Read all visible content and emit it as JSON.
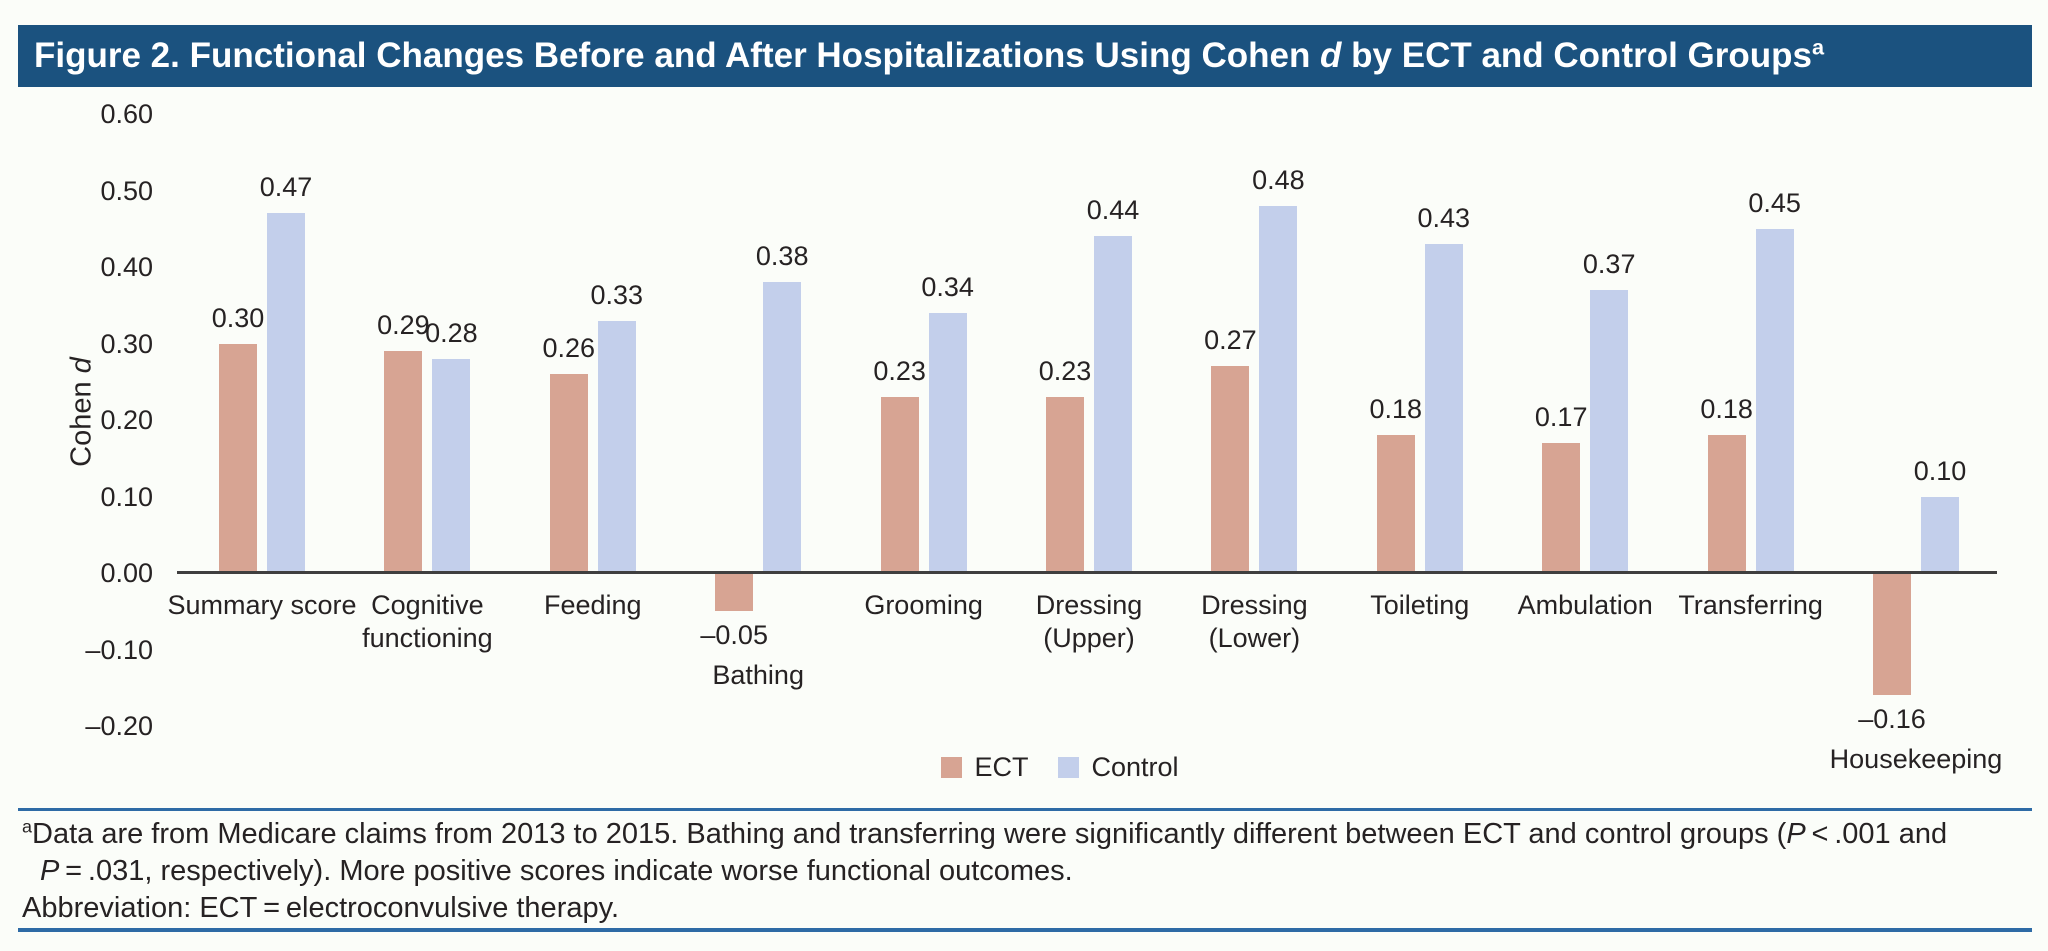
{
  "figure_title": {
    "part1": "Figure 2. Functional Changes Before and After Hospitalizations Using Cohen ",
    "italic_d": "d",
    "part2": " by ECT and Control Groups",
    "superscript": "a"
  },
  "y_axis": {
    "label_prefix": "Cohen ",
    "label_italic": "d",
    "ticks": [
      0.6,
      0.5,
      0.4,
      0.3,
      0.2,
      0.1,
      0.0,
      -0.1,
      -0.2
    ]
  },
  "legend": {
    "ect": "ECT",
    "control": "Control"
  },
  "colors": {
    "ect": "#d7a493",
    "control": "#c3cfeb",
    "title_bar": "#1b527f",
    "rule_blue": "#2e6ba6",
    "axis_line": "#3f3f3f"
  },
  "chart_data": {
    "type": "bar",
    "title": "Figure 2. Functional Changes Before and After Hospitalizations Using Cohen d by ECT and Control Groups",
    "ylabel": "Cohen d",
    "ylim": [
      -0.2,
      0.6
    ],
    "grid": false,
    "legend_position": "bottom",
    "categories": [
      "Summary score",
      "Cognitive\nfunctioning",
      "Feeding",
      "Bathing",
      "Grooming",
      "Dressing\n(Upper)",
      "Dressing\n(Lower)",
      "Toileting",
      "Ambulation",
      "Transferring",
      "Housekeeping"
    ],
    "series": [
      {
        "name": "ECT",
        "color": "#d7a493",
        "values": [
          0.3,
          0.29,
          0.26,
          -0.05,
          0.23,
          0.23,
          0.27,
          0.18,
          0.17,
          0.18,
          -0.16
        ]
      },
      {
        "name": "Control",
        "color": "#c3cfeb",
        "values": [
          0.47,
          0.28,
          0.33,
          0.38,
          0.34,
          0.44,
          0.48,
          0.43,
          0.37,
          0.45,
          0.1
        ]
      }
    ]
  },
  "footnotes": {
    "sup": "a",
    "line1_pre": "Data are from Medicare claims from 2013 to 2015. Bathing and transferring were significantly different between ECT and control groups (",
    "line1_p": "P",
    "line1_post": " < .001 and",
    "line2_p": "P",
    "line2_post": " = .031, respectively). More positive scores indicate worse functional outcomes.",
    "abbreviation": "Abbreviation: ECT = electroconvulsive therapy."
  }
}
